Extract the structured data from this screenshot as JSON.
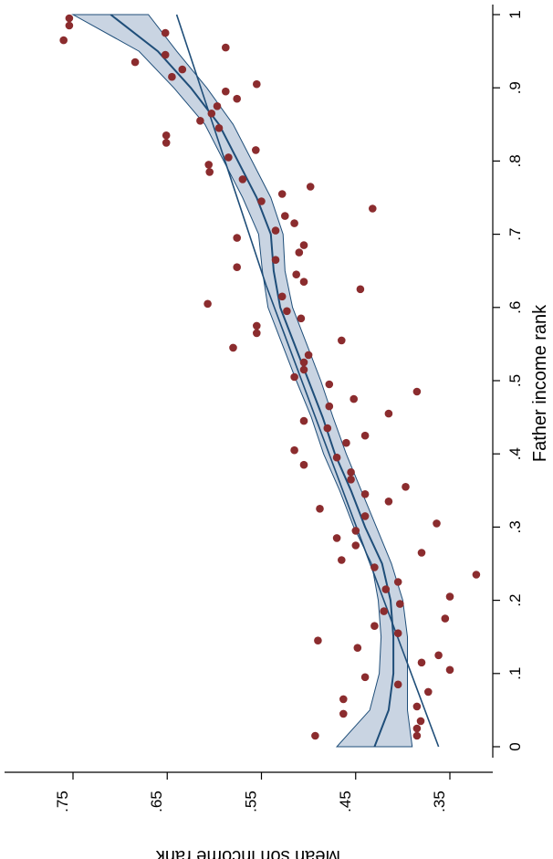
{
  "chart_data": {
    "type": "scatter",
    "orientation": "rotated-90",
    "xlabel": "Father income rank",
    "ylabel": "Mean son income rank",
    "xlim": [
      0,
      1
    ],
    "ylim": [
      0.31,
      0.8
    ],
    "x_ticks": [
      "0",
      ".1",
      ".2",
      ".3",
      ".4",
      ".5",
      ".6",
      ".7",
      ".8",
      ".9",
      "1"
    ],
    "y_ticks": [
      ".35",
      ".45",
      ".55",
      ".65",
      ".75"
    ],
    "colors": {
      "points": "#8b2c2e",
      "line": "#1f4e79",
      "band_fill": "#c9d4e2"
    },
    "series": [
      {
        "kind": "points",
        "x": [
          0.015,
          0.035,
          0.045,
          0.055,
          0.065,
          0.075,
          0.085,
          0.095,
          0.105,
          0.115,
          0.125,
          0.135,
          0.145,
          0.155,
          0.165,
          0.175,
          0.185,
          0.195,
          0.205,
          0.215,
          0.225,
          0.235,
          0.245,
          0.255,
          0.265,
          0.275,
          0.285,
          0.295,
          0.305,
          0.315,
          0.325,
          0.335,
          0.345,
          0.355,
          0.365,
          0.375,
          0.385,
          0.395,
          0.405,
          0.415,
          0.425,
          0.435,
          0.445,
          0.455,
          0.465,
          0.475,
          0.485,
          0.495,
          0.505,
          0.515,
          0.525,
          0.535,
          0.545,
          0.555,
          0.565,
          0.575,
          0.585,
          0.595,
          0.605,
          0.615,
          0.625,
          0.635,
          0.645,
          0.655,
          0.665,
          0.675,
          0.685,
          0.695,
          0.705,
          0.715,
          0.725,
          0.735,
          0.745,
          0.755,
          0.765,
          0.775,
          0.785,
          0.795,
          0.805,
          0.815,
          0.825,
          0.835,
          0.845,
          0.855,
          0.865,
          0.875,
          0.885,
          0.895,
          0.905,
          0.915,
          0.925,
          0.935,
          0.945,
          0.955,
          0.965,
          0.975,
          0.985,
          0.995,
          0.015,
          0.025
        ],
        "y": [
          0.493,
          0.381,
          0.463,
          0.385,
          0.463,
          0.373,
          0.405,
          0.44,
          0.35,
          0.38,
          0.362,
          0.448,
          0.49,
          0.405,
          0.43,
          0.355,
          0.42,
          0.403,
          0.35,
          0.418,
          0.405,
          0.322,
          0.43,
          0.465,
          0.38,
          0.45,
          0.47,
          0.45,
          0.364,
          0.44,
          0.488,
          0.415,
          0.44,
          0.397,
          0.455,
          0.455,
          0.505,
          0.47,
          0.515,
          0.46,
          0.44,
          0.48,
          0.505,
          0.415,
          0.478,
          0.452,
          0.385,
          0.478,
          0.515,
          0.505,
          0.505,
          0.5,
          0.58,
          0.465,
          0.555,
          0.555,
          0.508,
          0.523,
          0.607,
          0.528,
          0.445,
          0.505,
          0.513,
          0.576,
          0.535,
          0.51,
          0.505,
          0.576,
          0.535,
          0.515,
          0.525,
          0.432,
          0.55,
          0.528,
          0.498,
          0.57,
          0.605,
          0.606,
          0.585,
          0.556,
          0.651,
          0.651,
          0.595,
          0.615,
          0.603,
          0.597,
          0.576,
          0.588,
          0.555,
          0.645,
          0.634,
          0.684,
          0.652,
          0.588,
          0.76,
          0.652,
          0.754,
          0.754,
          0.385,
          0.385
        ]
      },
      {
        "kind": "linear_fit",
        "x": [
          0.0,
          0.63
        ],
        "y": [
          0.362,
          0.545
        ]
      },
      {
        "kind": "linear_fit",
        "x": [
          0.63,
          1.0
        ],
        "y": [
          0.545,
          0.64
        ]
      },
      {
        "kind": "smooth_fit",
        "x": [
          0.0,
          0.05,
          0.1,
          0.15,
          0.2,
          0.25,
          0.3,
          0.35,
          0.4,
          0.45,
          0.5,
          0.55,
          0.6,
          0.65,
          0.7,
          0.75,
          0.8,
          0.85,
          0.9,
          0.95,
          1.0
        ],
        "y": [
          0.43,
          0.415,
          0.41,
          0.41,
          0.413,
          0.422,
          0.44,
          0.455,
          0.472,
          0.485,
          0.5,
          0.515,
          0.53,
          0.537,
          0.54,
          0.555,
          0.575,
          0.595,
          0.625,
          0.66,
          0.71
        ],
        "ci_lower": [
          0.39,
          0.395,
          0.395,
          0.395,
          0.4,
          0.412,
          0.428,
          0.444,
          0.46,
          0.474,
          0.487,
          0.502,
          0.517,
          0.525,
          0.527,
          0.54,
          0.56,
          0.58,
          0.608,
          0.64,
          0.67
        ],
        "ci_upper": [
          0.47,
          0.435,
          0.425,
          0.423,
          0.426,
          0.433,
          0.452,
          0.467,
          0.484,
          0.497,
          0.513,
          0.528,
          0.543,
          0.549,
          0.553,
          0.57,
          0.59,
          0.61,
          0.643,
          0.68,
          0.75
        ]
      }
    ],
    "grid": false,
    "legend": "none"
  }
}
